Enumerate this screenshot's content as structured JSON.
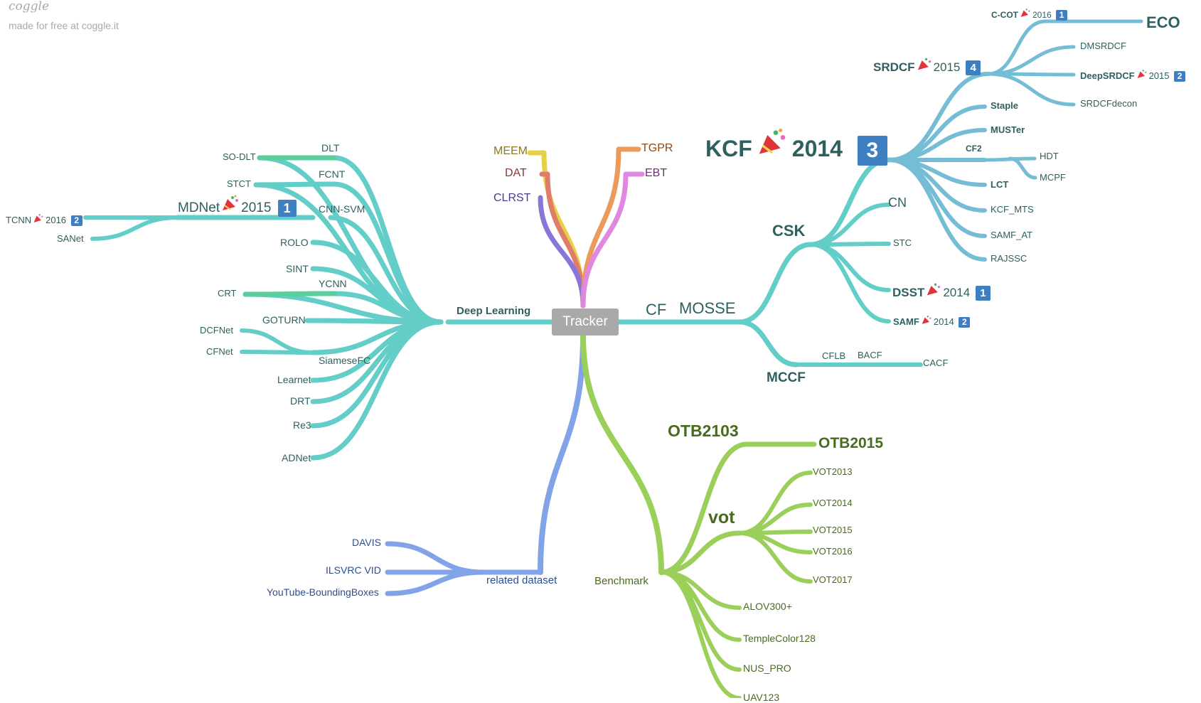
{
  "watermark": {
    "logo": "coggle",
    "subtitle": "made for free at coggle.it"
  },
  "root": "Tracker",
  "colors": {
    "teal": "#63cdc8",
    "teal_text": "#2f5f5e",
    "blue": "#82a3e8",
    "blue_text": "#2c4f8f",
    "green": "#9acf5a",
    "green_text": "#4a6a20",
    "badge": "#3e7fc2"
  },
  "party_icon": "party-popper-icon",
  "branches": {
    "deep_learning": {
      "label": "Deep Learning",
      "children": [
        "DLT",
        "SO-DLT",
        "FCNT",
        "STCT",
        "MDNet",
        "2015",
        "1",
        "TCNN",
        "2016",
        "2",
        "SANet",
        "CNN-SVM",
        "ROLO",
        "SINT",
        "YCNN",
        "CRT",
        "GOTURN",
        "DCFNet",
        "CFNet",
        "SiameseFC",
        "Learnet",
        "DRT",
        "Re3",
        "ADNet"
      ]
    },
    "top": {
      "children": [
        "MEEM",
        "DAT",
        "CLRST",
        "TGPR",
        "EBT"
      ]
    },
    "cf": {
      "label": "CF",
      "children": [
        "MOSSE",
        "CSK",
        "CN",
        "STC",
        "DSST",
        "2014",
        "1",
        "SAMF",
        "2014",
        "2",
        "MCCF",
        "CFLB",
        "BACF",
        "CACF"
      ]
    },
    "kcf": {
      "label": "KCF",
      "year": "2014",
      "badge": "3",
      "children": [
        "SRDCF",
        "2015",
        "4",
        "C-COT",
        "2016",
        "1",
        "ECO",
        "DMSRDCF",
        "DeepSRDCF",
        "2015",
        "2",
        "SRDCFdecon",
        "Staple",
        "MUSTer",
        "CF2",
        "HDT",
        "MCPF",
        "LCT",
        "KCF_MTS",
        "SAMF_AT",
        "RAJSSC"
      ]
    },
    "related": {
      "label": "related dataset",
      "children": [
        "DAVIS",
        "ILSVRC VID",
        "YouTube-BoundingBoxes"
      ]
    },
    "benchmark": {
      "label": "Benchmark",
      "children": [
        "OTB2103",
        "OTB2015",
        "vot",
        "VOT2013",
        "VOT2014",
        "VOT2015",
        "VOT2016",
        "VOT2017",
        "ALOV300+",
        "TempleColor128",
        "NUS_PRO",
        "UAV123"
      ]
    }
  }
}
